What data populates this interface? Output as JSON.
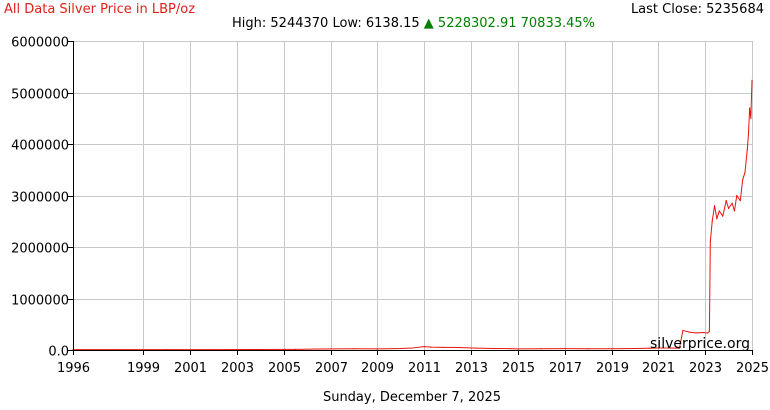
{
  "header": {
    "title": "All Data Silver Price in LBP/oz",
    "last_close_label": "Last Close:",
    "last_close_value": "5235684",
    "high_label": "High:",
    "high_value": "5244370",
    "low_label": "Low:",
    "low_value": "6138.15",
    "change_arrow": "▲",
    "change_value": "5228302.91",
    "change_percent": "70833.45%"
  },
  "footer": {
    "date": "Sunday, December 7, 2025"
  },
  "watermark": "silverprice.org",
  "colors": {
    "line": "#e8140e",
    "title": "#e0201c",
    "change": "#008000",
    "grid": "#c8c8c8",
    "axis": "#000000"
  },
  "chart_data": {
    "type": "line",
    "title": "All Data Silver Price in LBP/oz",
    "xlabel": "",
    "ylabel": "",
    "xlim": [
      1996,
      2025
    ],
    "ylim": [
      0,
      6000000
    ],
    "grid": true,
    "x_ticks": [
      "1996",
      "1999",
      "2001",
      "2003",
      "2005",
      "2007",
      "2009",
      "2011",
      "2013",
      "2015",
      "2017",
      "2019",
      "2021",
      "2023",
      "2025"
    ],
    "y_ticks": [
      "0.0",
      "1000000",
      "2000000",
      "3000000",
      "4000000",
      "5000000",
      "6000000"
    ],
    "series": [
      {
        "x": [
          1996.0,
          1998.0,
          2000.0,
          2002.0,
          2004.0,
          2005.5,
          2006.5,
          2008.0,
          2009.0,
          2010.0,
          2010.5,
          2011.0,
          2011.3,
          2011.8,
          2012.5,
          2013.2,
          2014.0,
          2015.0,
          2016.0,
          2017.0,
          2018.0,
          2019.0,
          2020.0,
          2020.6,
          2021.0,
          2021.5,
          2021.9,
          2022.05,
          2022.3,
          2022.6,
          2022.9,
          2023.1,
          2023.18,
          2023.22,
          2023.3,
          2023.4,
          2023.5,
          2023.6,
          2023.75,
          2023.9,
          2024.0,
          2024.15,
          2024.25,
          2024.35,
          2024.5,
          2024.6,
          2024.7,
          2024.8,
          2024.85,
          2024.9,
          2024.95,
          2025.0
        ],
        "y": [
          8000,
          8000,
          7500,
          7000,
          9000,
          12000,
          20000,
          25000,
          22000,
          28000,
          40000,
          65000,
          55000,
          50000,
          48000,
          37000,
          30000,
          23000,
          25000,
          26000,
          24000,
          25000,
          28000,
          35000,
          40000,
          38000,
          35000,
          380000,
          350000,
          330000,
          340000,
          330000,
          360000,
          2100000,
          2500000,
          2800000,
          2550000,
          2700000,
          2600000,
          2900000,
          2750000,
          2850000,
          2700000,
          3000000,
          2900000,
          3300000,
          3450000,
          3900000,
          4200000,
          4700000,
          4500000,
          5235684
        ]
      }
    ]
  }
}
